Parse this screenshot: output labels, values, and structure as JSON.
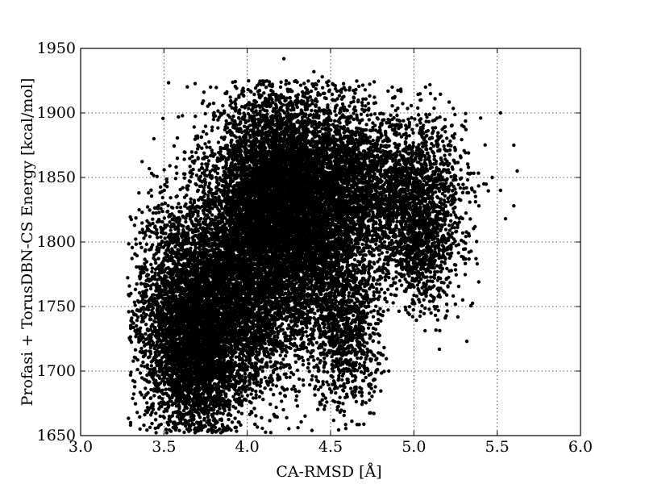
{
  "chart_data": {
    "type": "scatter",
    "xlabel": "CA-RMSD [Å]",
    "ylabel": "Profasi + TorusDBN-CS Energy [kcal/mol]",
    "xlim": [
      3.0,
      6.0
    ],
    "ylim": [
      1650,
      1950
    ],
    "xticks": [
      "3.0",
      "3.5",
      "4.0",
      "4.5",
      "5.0",
      "5.5",
      "6.0"
    ],
    "yticks": [
      "1650",
      "1700",
      "1750",
      "1800",
      "1850",
      "1900",
      "1950"
    ],
    "grid": true,
    "marker_color": "#000000",
    "clusters": [
      {
        "cx": 3.55,
        "cy": 1745,
        "sx": 0.12,
        "sy": 45,
        "n": 1800
      },
      {
        "cx": 3.72,
        "cy": 1715,
        "sx": 0.12,
        "sy": 35,
        "n": 2600
      },
      {
        "cx": 3.95,
        "cy": 1765,
        "sx": 0.18,
        "sy": 45,
        "n": 3800
      },
      {
        "cx": 4.15,
        "cy": 1840,
        "sx": 0.18,
        "sy": 40,
        "n": 4200
      },
      {
        "cx": 4.35,
        "cy": 1810,
        "sx": 0.17,
        "sy": 45,
        "n": 3200
      },
      {
        "cx": 4.55,
        "cy": 1845,
        "sx": 0.15,
        "sy": 35,
        "n": 1800
      },
      {
        "cx": 4.6,
        "cy": 1730,
        "sx": 0.1,
        "sy": 30,
        "n": 900
      },
      {
        "cx": 4.95,
        "cy": 1840,
        "sx": 0.17,
        "sy": 30,
        "n": 1800
      },
      {
        "cx": 5.05,
        "cy": 1795,
        "sx": 0.12,
        "sy": 25,
        "n": 700
      }
    ],
    "outliers": [
      {
        "x": 4.22,
        "y": 1942
      },
      {
        "x": 4.4,
        "y": 1932
      },
      {
        "x": 4.45,
        "y": 1928
      },
      {
        "x": 5.52,
        "y": 1900
      },
      {
        "x": 5.6,
        "y": 1875
      },
      {
        "x": 5.62,
        "y": 1855
      },
      {
        "x": 5.55,
        "y": 1818
      },
      {
        "x": 5.6,
        "y": 1828
      },
      {
        "x": 5.47,
        "y": 1850
      },
      {
        "x": 5.52,
        "y": 1840
      },
      {
        "x": 5.42,
        "y": 1845
      },
      {
        "x": 3.38,
        "y": 1658
      },
      {
        "x": 3.4,
        "y": 1668
      },
      {
        "x": 3.44,
        "y": 1880
      },
      {
        "x": 3.78,
        "y": 1920
      },
      {
        "x": 3.35,
        "y": 1838
      },
      {
        "x": 3.3,
        "y": 1735
      },
      {
        "x": 4.87,
        "y": 1920
      },
      {
        "x": 5.07,
        "y": 1920
      },
      {
        "x": 5.1,
        "y": 1915
      },
      {
        "x": 4.85,
        "y": 1700
      }
    ]
  }
}
